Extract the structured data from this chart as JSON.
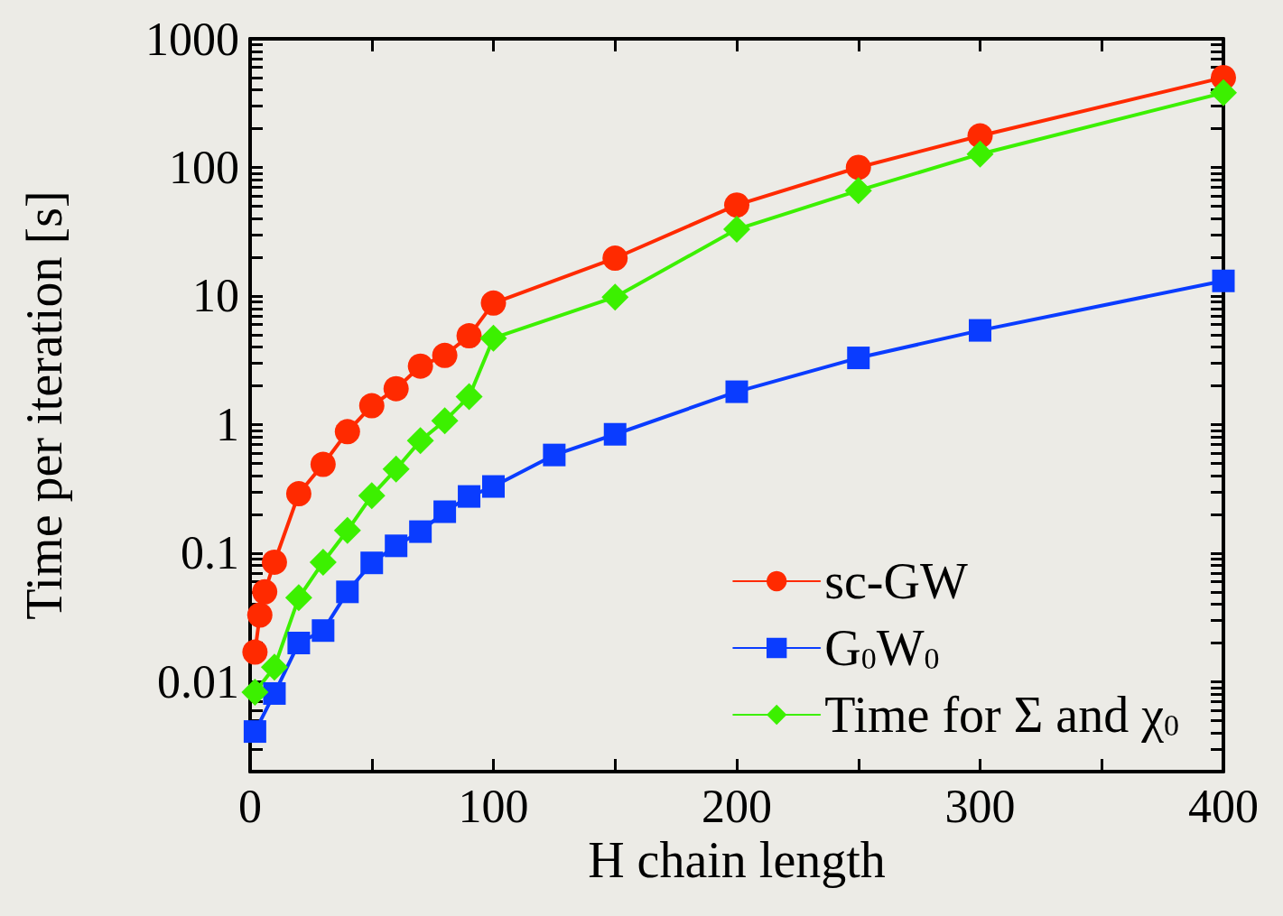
{
  "chart_data": {
    "type": "line",
    "xlabel": "H chain length",
    "ylabel": "Time per iteration [s]",
    "log": "y",
    "grid": false,
    "legend": "bottom right",
    "line_style": "solid",
    "xlim": [
      0,
      400
    ],
    "xticks": [
      0,
      {
        "value": 50,
        "label": null
      },
      100,
      {
        "value": 150,
        "label": null
      },
      200,
      {
        "value": 250,
        "label": null
      },
      300,
      {
        "value": 350,
        "label": null
      },
      400
    ],
    "ylim": [
      0.002,
      1000
    ],
    "yticks": [
      {
        "value": 0.002,
        "label": null
      },
      {
        "value": 0.003,
        "label": null
      },
      {
        "value": 0.004,
        "label": null
      },
      {
        "value": 0.005,
        "label": null
      },
      {
        "value": 0.006,
        "label": null
      },
      {
        "value": 0.007,
        "label": null
      },
      {
        "value": 0.008,
        "label": null
      },
      {
        "value": 0.009,
        "label": null
      },
      0.01,
      {
        "value": 0.02,
        "label": null
      },
      {
        "value": 0.03,
        "label": null
      },
      {
        "value": 0.04,
        "label": null
      },
      {
        "value": 0.05,
        "label": null
      },
      {
        "value": 0.06,
        "label": null
      },
      {
        "value": 0.07,
        "label": null
      },
      {
        "value": 0.08,
        "label": null
      },
      {
        "value": 0.09,
        "label": null
      },
      0.1,
      {
        "value": 0.2,
        "label": null
      },
      {
        "value": 0.3,
        "label": null
      },
      {
        "value": 0.4,
        "label": null
      },
      {
        "value": 0.5,
        "label": null
      },
      {
        "value": 0.6,
        "label": null
      },
      {
        "value": 0.7,
        "label": null
      },
      {
        "value": 0.8,
        "label": null
      },
      {
        "value": 0.9,
        "label": null
      },
      1,
      {
        "value": 2,
        "label": null
      },
      {
        "value": 3,
        "label": null
      },
      {
        "value": 4,
        "label": null
      },
      {
        "value": 5,
        "label": null
      },
      {
        "value": 6,
        "label": null
      },
      {
        "value": 7,
        "label": null
      },
      {
        "value": 8,
        "label": null
      },
      {
        "value": 9,
        "label": null
      },
      10,
      {
        "value": 20,
        "label": null
      },
      {
        "value": 30,
        "label": null
      },
      {
        "value": 40,
        "label": null
      },
      {
        "value": 50,
        "label": null
      },
      {
        "value": 60,
        "label": null
      },
      {
        "value": 70,
        "label": null
      },
      {
        "value": 80,
        "label": null
      },
      {
        "value": 90,
        "label": null
      },
      100,
      {
        "value": 200,
        "label": null
      },
      {
        "value": 300,
        "label": null
      },
      {
        "value": 400,
        "label": null
      },
      {
        "value": 500,
        "label": null
      },
      {
        "value": 600,
        "label": null
      },
      {
        "value": 700,
        "label": null
      },
      {
        "value": 800,
        "label": null
      },
      {
        "value": 900,
        "label": null
      },
      1000
    ],
    "series": [
      {
        "name": "sc-GW",
        "color": "#ff2a00",
        "marker": "circle",
        "x": [
          2,
          4,
          6,
          10,
          20,
          30,
          40,
          50,
          60,
          70,
          80,
          90,
          100,
          150,
          200,
          250,
          300,
          400
        ],
        "values": [
          0.017,
          0.033,
          0.05,
          0.085,
          0.29,
          0.49,
          0.88,
          1.4,
          1.9,
          2.85,
          3.45,
          4.9,
          8.8,
          19.7,
          51,
          100,
          176,
          500
        ]
      },
      {
        "name": "G$_{0}$W$_{0}$",
        "color": "#0a3cff",
        "marker": "square",
        "x": [
          2,
          10,
          20,
          30,
          40,
          50,
          60,
          70,
          80,
          90,
          100,
          125,
          150,
          200,
          250,
          300,
          400
        ],
        "values": [
          0.0041,
          0.0081,
          0.02,
          0.025,
          0.05,
          0.084,
          0.114,
          0.147,
          0.21,
          0.276,
          0.33,
          0.58,
          0.84,
          1.8,
          3.3,
          5.4,
          13.1
        ]
      },
      {
        "name": "Time for Σ and χ$_{0}$",
        "color": "#3cf000",
        "marker": "diamond",
        "x": [
          2,
          10,
          20,
          30,
          40,
          50,
          60,
          70,
          80,
          90,
          100,
          150,
          200,
          250,
          300,
          400
        ],
        "values": [
          0.0083,
          0.013,
          0.045,
          0.085,
          0.15,
          0.28,
          0.45,
          0.75,
          1.07,
          1.65,
          4.7,
          9.8,
          33,
          66,
          127,
          380
        ]
      }
    ]
  }
}
